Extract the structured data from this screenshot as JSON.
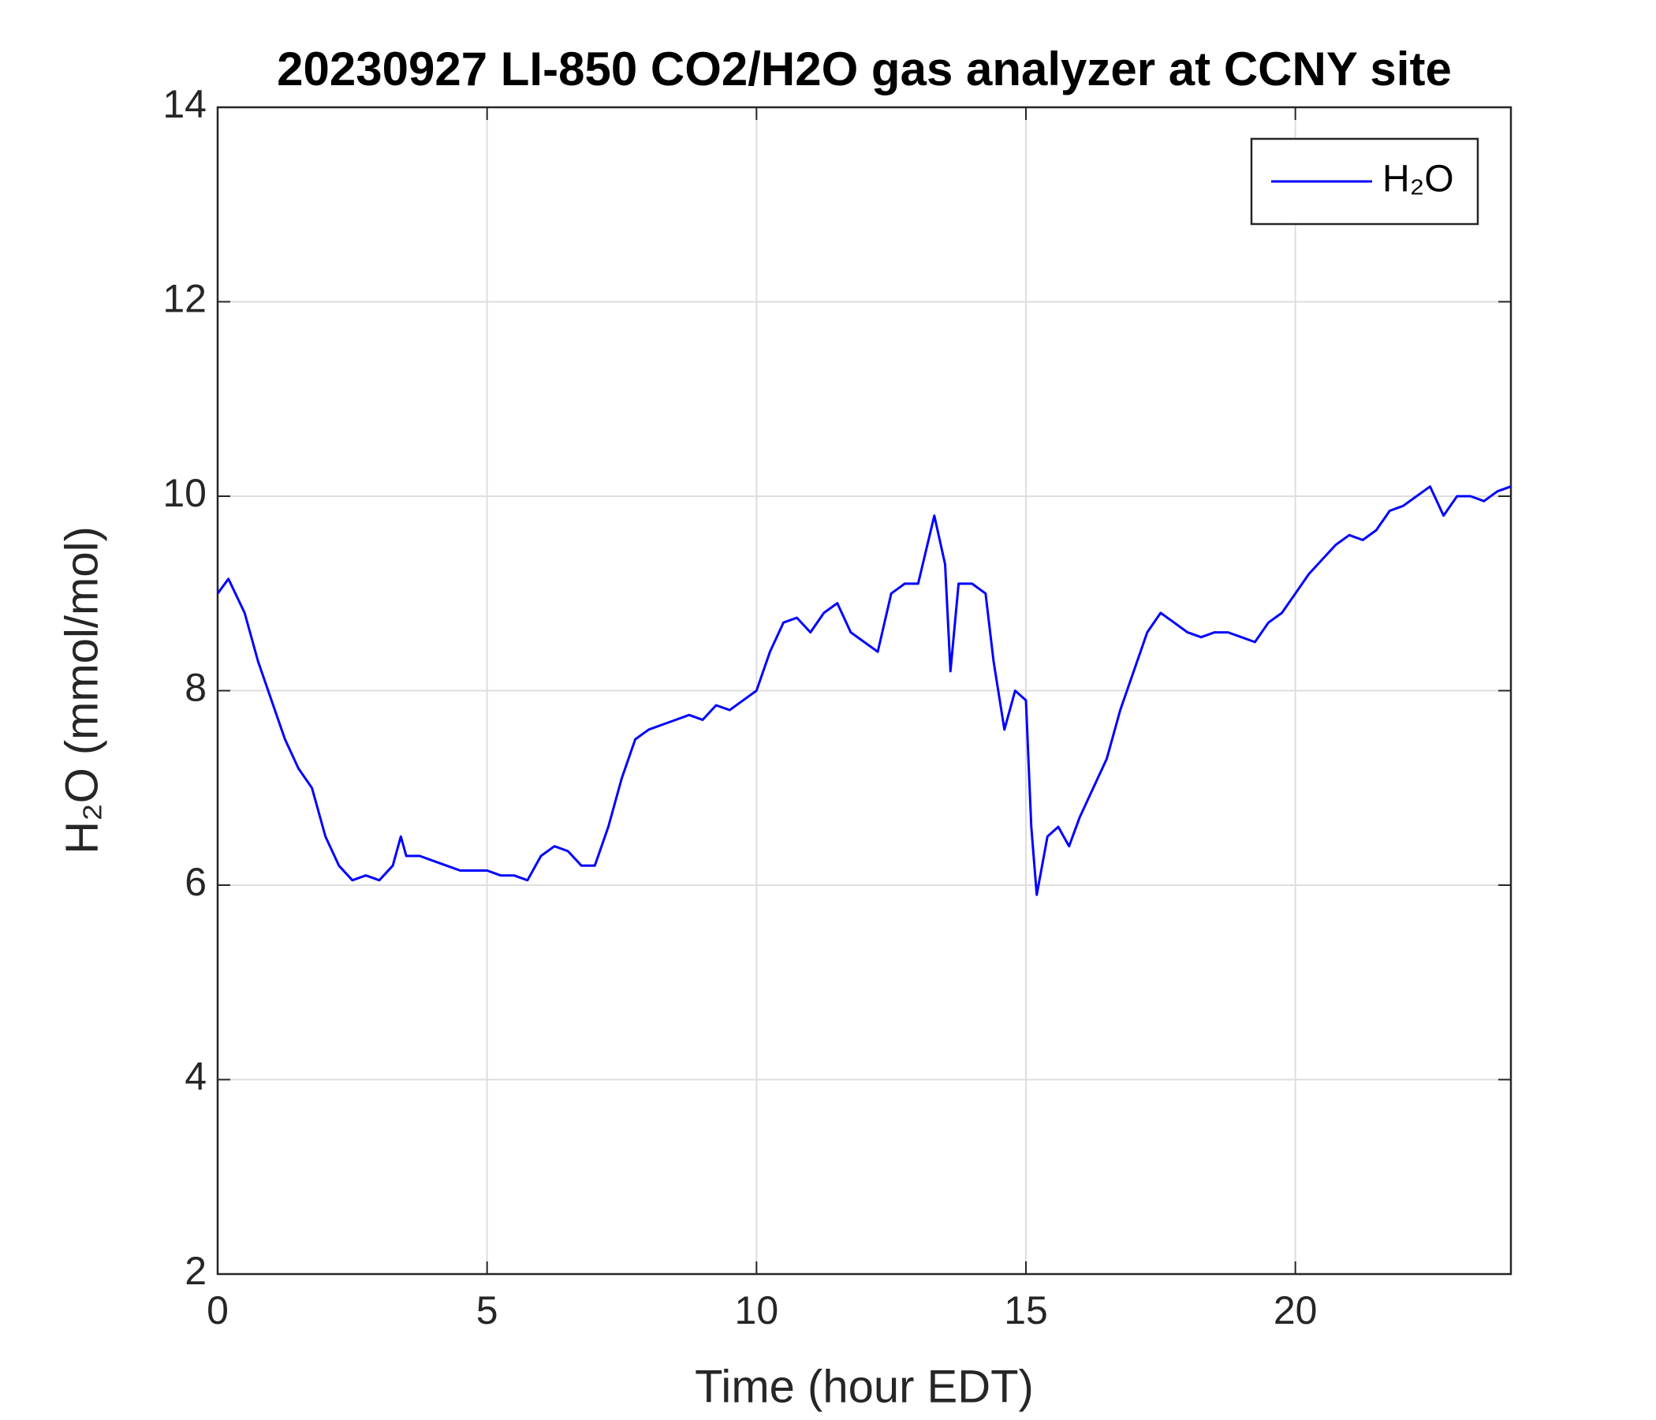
{
  "chart_data": {
    "type": "line",
    "title": "20230927 LI-850 CO2/H2O gas analyzer at CCNY site",
    "x_label": "Time (hour EDT)",
    "y_label": "H₂O (mmol/mol)",
    "x": [
      0,
      0.2,
      0.5,
      0.75,
      1.0,
      1.25,
      1.5,
      1.75,
      2.0,
      2.25,
      2.5,
      2.75,
      3.0,
      3.25,
      3.4,
      3.5,
      3.75,
      4.0,
      4.25,
      4.5,
      4.75,
      5.0,
      5.25,
      5.5,
      5.75,
      6.0,
      6.25,
      6.5,
      6.75,
      7.0,
      7.25,
      7.5,
      7.75,
      8.0,
      8.25,
      8.5,
      8.75,
      9.0,
      9.25,
      9.5,
      9.75,
      10.0,
      10.25,
      10.5,
      10.75,
      11.0,
      11.25,
      11.5,
      11.75,
      12.0,
      12.25,
      12.5,
      12.75,
      13.0,
      13.3,
      13.5,
      13.6,
      13.75,
      14.0,
      14.25,
      14.4,
      14.6,
      14.8,
      15.0,
      15.1,
      15.2,
      15.4,
      15.6,
      15.8,
      16.0,
      16.25,
      16.5,
      16.75,
      17.0,
      17.25,
      17.5,
      17.75,
      18.0,
      18.25,
      18.5,
      18.75,
      19.0,
      19.25,
      19.5,
      19.75,
      20.0,
      20.25,
      20.5,
      20.75,
      21.0,
      21.25,
      21.5,
      21.75,
      22.0,
      22.25,
      22.5,
      22.75,
      23.0,
      23.25,
      23.5,
      23.75,
      24.0
    ],
    "series": [
      {
        "name": "H₂O",
        "color": "#0000ff",
        "values": [
          9.0,
          9.15,
          8.8,
          8.3,
          7.9,
          7.5,
          7.2,
          7.0,
          6.5,
          6.2,
          6.05,
          6.1,
          6.05,
          6.2,
          6.5,
          6.3,
          6.3,
          6.25,
          6.2,
          6.15,
          6.15,
          6.15,
          6.1,
          6.1,
          6.05,
          6.3,
          6.4,
          6.35,
          6.2,
          6.2,
          6.6,
          7.1,
          7.5,
          7.6,
          7.65,
          7.7,
          7.75,
          7.7,
          7.85,
          7.8,
          7.9,
          8.0,
          8.4,
          8.7,
          8.75,
          8.6,
          8.8,
          8.9,
          8.6,
          8.5,
          8.4,
          9.0,
          9.1,
          9.1,
          9.8,
          9.3,
          8.2,
          9.1,
          9.1,
          9.0,
          8.3,
          7.6,
          8.0,
          7.9,
          6.6,
          5.9,
          6.5,
          6.6,
          6.4,
          6.7,
          7.0,
          7.3,
          7.8,
          8.2,
          8.6,
          8.8,
          8.7,
          8.6,
          8.55,
          8.6,
          8.6,
          8.55,
          8.5,
          8.7,
          8.8,
          9.0,
          9.2,
          9.35,
          9.5,
          9.6,
          9.55,
          9.65,
          9.85,
          9.9,
          10.0,
          10.1,
          9.8,
          10.0,
          10.0,
          9.95,
          10.05,
          10.1
        ]
      }
    ],
    "xlim": [
      0,
      24
    ],
    "xticks": [
      0,
      5,
      10,
      15,
      20
    ],
    "ylim": [
      2,
      14
    ],
    "yticks": [
      2,
      4,
      6,
      8,
      10,
      12,
      14
    ],
    "grid": true,
    "legend": "top-right"
  }
}
